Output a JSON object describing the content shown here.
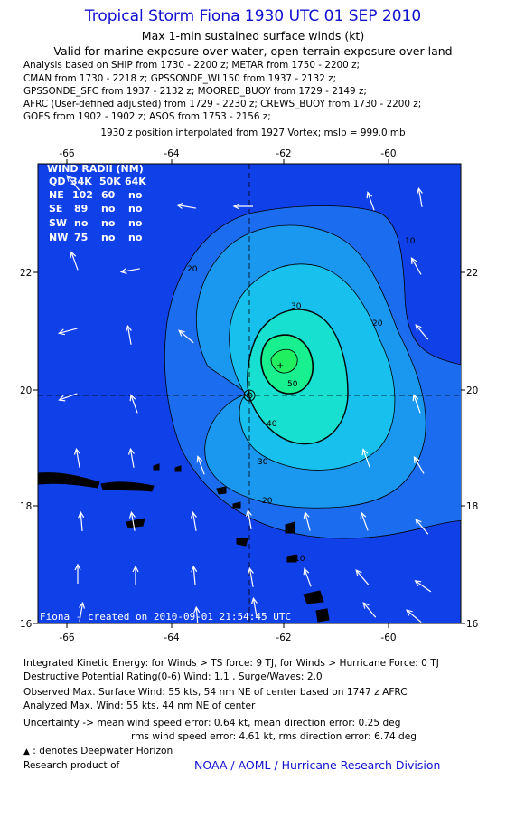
{
  "title": "Tropical Storm Fiona 1930 UTC 01 SEP 2010",
  "subtitle1": "Max 1-min sustained surface winds (kt)",
  "subtitle2": "Valid for marine exposure over water, open terrain exposure over land",
  "analysis_lines": [
    "Analysis based on SHIP from 1730 - 2200 z; METAR from 1750 - 2200 z;",
    "CMAN from 1730 - 2218 z; GPSSONDE_WL150 from 1937 - 2132 z;",
    "GPSSONDE_SFC from 1937 - 2132 z; MOORED_BUOY from 1729 - 2149 z;",
    "AFRC (User-defined adjusted) from 1729 - 2230 z; CREWS_BUOY from 1730 - 2200 z;",
    "GOES from 1902 - 1902 z; ASOS from 1753 - 2156 z;"
  ],
  "position_note": "1930 z position interpolated from 1927 Vortex; mslp = 999.0 mb",
  "map": {
    "lon_labels": [
      "-66",
      "-64",
      "-62",
      "-60"
    ],
    "lat_labels": [
      "22",
      "20",
      "18",
      "16"
    ],
    "contour_labels": [
      "10",
      "10",
      "20",
      "20",
      "20",
      "30",
      "30",
      "40",
      "50"
    ],
    "credit": "Fiona - created on 2010-09-01 21:54:45 UTC",
    "wind_radii": {
      "title": "WIND RADII (NM)",
      "header": [
        "QD",
        "34K",
        "50K",
        "64K"
      ],
      "rows": [
        [
          "NE",
          "102",
          "60",
          "no"
        ],
        [
          "SE",
          "89",
          "no",
          "no"
        ],
        [
          "SW",
          "no",
          "no",
          "no"
        ],
        [
          "NW",
          "75",
          "no",
          "no"
        ]
      ]
    },
    "colors": {
      "ocean": "#1040e8",
      "land": "#000000",
      "band_10": "#1c6cf0",
      "band_20": "#1a98f0",
      "band_30": "#18c0ee",
      "band_40": "#18e0d0",
      "band_50": "#18f090"
    }
  },
  "footer": {
    "ike": "Integrated Kinetic Energy:  for Winds > TS force: 9 TJ,  for Winds > Hurricane Force: 0 TJ",
    "dpr": "Destructive Potential Rating(0-6)   Wind: 1.1 , Surge/Waves: 2.0",
    "obs": "Observed Max. Surface Wind: 55 kts, 54 nm NE of center based on 1747 z AFRC",
    "analyzed": "Analyzed Max. Wind: 55 kts, 44 nm NE of center",
    "uncert1": "Uncertainty -> mean wind speed error: 0.64 kt,   mean direction error: 0.25 deg",
    "uncert2": "rms wind speed error: 4.61 kt,   rms direction error: 6.74 deg",
    "deepwater": ": denotes Deepwater Horizon",
    "research": "Research product of",
    "org": "NOAA / AOML / Hurricane Research Division"
  }
}
